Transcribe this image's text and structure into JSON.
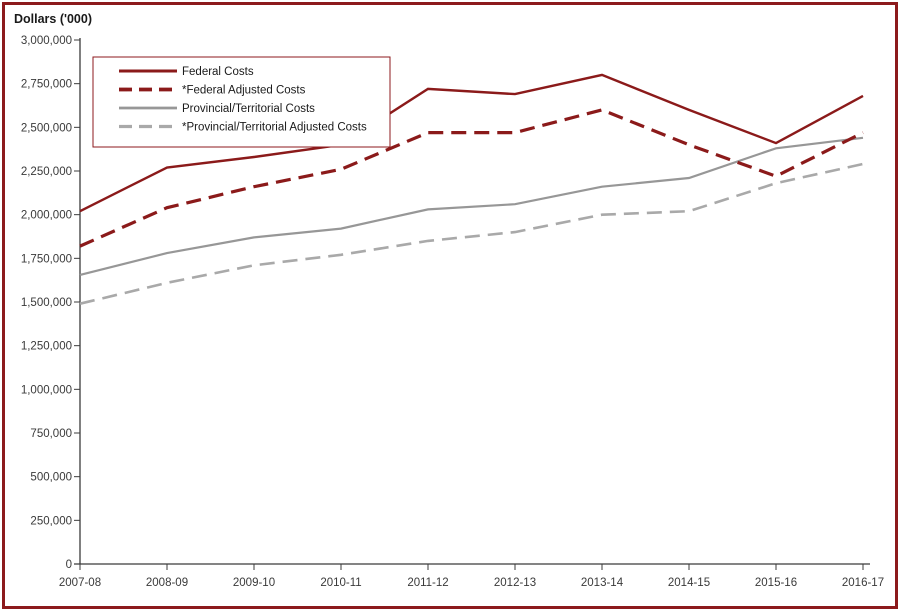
{
  "page": {
    "background": "#ffffff",
    "frame_border_color": "#8c1a1c",
    "axis_color": "#3b3b3b",
    "label_color": "#3a3a3a"
  },
  "chart_data": {
    "type": "line",
    "title": "Dollars ('000)",
    "categories": [
      "2007-08",
      "2008-09",
      "2009-10",
      "2010-11",
      "2011-12",
      "2012-13",
      "2013-14",
      "2014-15",
      "2015-16",
      "2016-17"
    ],
    "series": [
      {
        "name": "Federal Costs",
        "color": "#8b1a1a",
        "style": "solid",
        "width": 2.4,
        "values": [
          2020000,
          2270000,
          2330000,
          2400000,
          2720000,
          2690000,
          2800000,
          2600000,
          2410000,
          2680000
        ]
      },
      {
        "name": "*Federal Adjusted Costs",
        "color": "#8b1a1a",
        "style": "dashed",
        "width": 3.2,
        "values": [
          1820000,
          2040000,
          2160000,
          2260000,
          2470000,
          2470000,
          2600000,
          2400000,
          2220000,
          2470000
        ]
      },
      {
        "name": "Provincial/Territorial Costs",
        "color": "#979797",
        "style": "solid",
        "width": 2.2,
        "values": [
          1655000,
          1780000,
          1870000,
          1920000,
          2030000,
          2060000,
          2160000,
          2210000,
          2380000,
          2440000
        ]
      },
      {
        "name": "*Provincial/Territorial Adjusted Costs",
        "color": "#a9a9a9",
        "style": "dashed",
        "width": 2.6,
        "values": [
          1490000,
          1610000,
          1710000,
          1770000,
          1850000,
          1900000,
          2000000,
          2020000,
          2180000,
          2290000
        ]
      }
    ],
    "ylim": [
      0,
      3000000
    ],
    "y_step": 250000,
    "y_tick_labels": [
      "0",
      "250,000",
      "500,000",
      "750,000",
      "1,000,000",
      "1,250,000",
      "1,500,000",
      "1,750,000",
      "2,000,000",
      "2,250,000",
      "2,500,000",
      "2,750,000",
      "3,000,000"
    ],
    "grid": false,
    "legend_position": "top-left-inside"
  }
}
